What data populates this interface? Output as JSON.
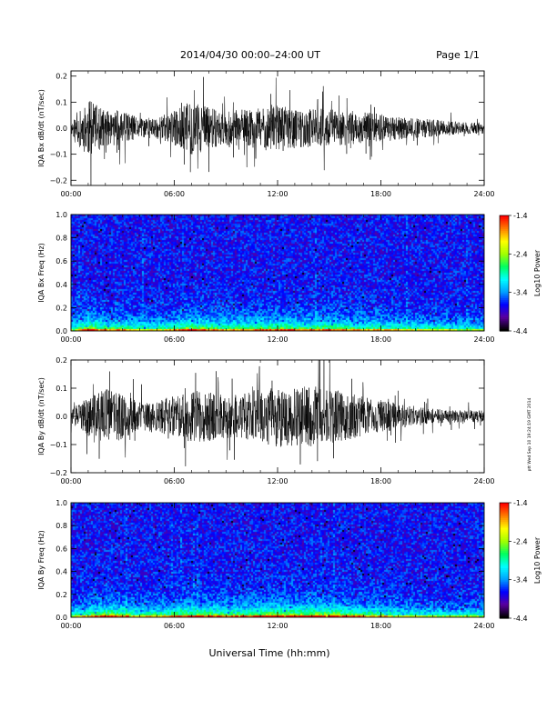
{
  "header": {
    "title": "2014/04/30  00:00–24:00 UT",
    "page": "Page 1/1"
  },
  "footer": {
    "xlabel": "Universal Time (hh:mm)"
  },
  "side_stamp": "ptt Wed Sep 10 19:24:19 GMT 2014",
  "colorbar": {
    "label": "Log10 Power",
    "ticks": [
      "-1.4",
      "-2.4",
      "-3.4",
      "-4.4"
    ],
    "range": [
      -4.4,
      -1.4
    ],
    "colors": [
      "#000000",
      "#5a00a0",
      "#0000ff",
      "#00a0ff",
      "#00ffff",
      "#00ff60",
      "#a0ff00",
      "#ffff00",
      "#ff8000",
      "#ff0000"
    ]
  },
  "chart_data": [
    {
      "type": "line",
      "title": "",
      "xlabel": "",
      "ylabel": "IQA Bx dB/dt (nT/sec)",
      "x_ticks": [
        "00:00",
        "06:00",
        "12:00",
        "18:00",
        "24:00"
      ],
      "y_ticks": [
        "0.2",
        "0.1",
        "0.0",
        "−0.1",
        "−0.2"
      ],
      "xlim": [
        0,
        24
      ],
      "ylim": [
        -0.22,
        0.22
      ],
      "series": [
        {
          "x": [
            0,
            1,
            2,
            3,
            4,
            5,
            6,
            7,
            8,
            9,
            10,
            11,
            12,
            13,
            14,
            15,
            16,
            17,
            18,
            19,
            20,
            21,
            22,
            23,
            24
          ],
          "amplitude": [
            0.04,
            0.2,
            0.12,
            0.12,
            0.07,
            0.08,
            0.12,
            0.2,
            0.14,
            0.12,
            0.13,
            0.14,
            0.16,
            0.14,
            0.13,
            0.14,
            0.12,
            0.11,
            0.1,
            0.08,
            0.07,
            0.06,
            0.05,
            0.04,
            0.04
          ]
        }
      ]
    },
    {
      "type": "heatmap",
      "title": "",
      "xlabel": "",
      "ylabel": "IQA Bx Freq (Hz)",
      "x_ticks": [
        "00:00",
        "06:00",
        "12:00",
        "18:00",
        "24:00"
      ],
      "y_ticks": [
        "1.0",
        "0.8",
        "0.6",
        "0.4",
        "0.2",
        "0.0"
      ],
      "xlim": [
        0,
        24
      ],
      "ylim": [
        0,
        1.0
      ],
      "zlim": [
        -4.4,
        -1.4
      ]
    },
    {
      "type": "line",
      "title": "",
      "xlabel": "",
      "ylabel": "IQA By dB/dt (nT/sec)",
      "x_ticks": [
        "00:00",
        "06:00",
        "12:00",
        "18:00",
        "24:00"
      ],
      "y_ticks": [
        "0.2",
        "0.1",
        "0.0",
        "−0.1",
        "−0.2"
      ],
      "xlim": [
        0,
        24
      ],
      "ylim": [
        -0.2,
        0.2
      ],
      "series": [
        {
          "x": [
            0,
            1,
            2,
            3,
            4,
            5,
            6,
            7,
            8,
            9,
            10,
            11,
            12,
            13,
            14,
            15,
            16,
            17,
            18,
            19,
            20,
            21,
            22,
            23,
            24
          ],
          "amplitude": [
            0.05,
            0.12,
            0.18,
            0.15,
            0.09,
            0.11,
            0.13,
            0.17,
            0.16,
            0.14,
            0.15,
            0.18,
            0.2,
            0.19,
            0.2,
            0.18,
            0.16,
            0.13,
            0.11,
            0.08,
            0.06,
            0.05,
            0.04,
            0.04,
            0.04
          ]
        }
      ]
    },
    {
      "type": "heatmap",
      "title": "",
      "xlabel": "",
      "ylabel": "IQA By Freq (Hz)",
      "x_ticks": [
        "00:00",
        "06:00",
        "12:00",
        "18:00",
        "24:00"
      ],
      "y_ticks": [
        "1.0",
        "0.8",
        "0.6",
        "0.4",
        "0.2",
        "0.0"
      ],
      "xlim": [
        0,
        24
      ],
      "ylim": [
        0,
        1.0
      ],
      "zlim": [
        -4.4,
        -1.4
      ]
    }
  ]
}
